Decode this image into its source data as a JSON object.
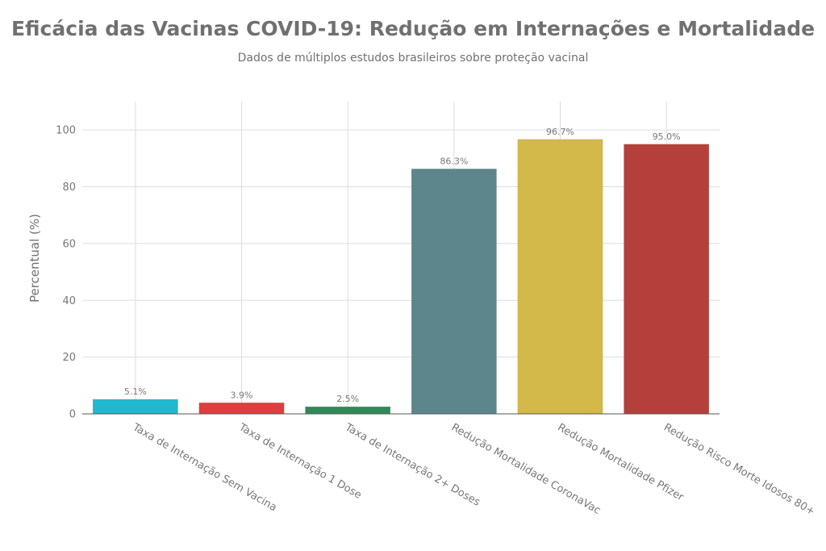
{
  "chart_data": {
    "type": "bar",
    "title": "Eficácia das Vacinas COVID-19: Redução em Internações e Mortalidade",
    "subtitle": "Dados de múltiplos estudos brasileiros sobre proteção vacinal",
    "xlabel": "",
    "ylabel": "Percentual (%)",
    "ylim": [
      0,
      110
    ],
    "yticks": [
      0,
      20,
      40,
      60,
      80,
      100
    ],
    "grid": true,
    "categories": [
      "Taxa de Internação Sem Vacina",
      "Taxa de Internação 1 Dose",
      "Taxa de Internação 2+ Doses",
      "Redução Mortalidade CoronaVac",
      "Redução Mortalidade Pfizer",
      "Redução Risco Morte Idosos 80+"
    ],
    "values": [
      5.1,
      3.9,
      2.5,
      86.3,
      96.7,
      95.0
    ],
    "data_labels": [
      "5.1%",
      "3.9%",
      "2.5%",
      "86.3%",
      "96.7%",
      "95.0%"
    ],
    "colors": [
      "#22b8cf",
      "#e03e3e",
      "#2f8a57",
      "#5c868c",
      "#d3b84a",
      "#b5403b"
    ]
  }
}
